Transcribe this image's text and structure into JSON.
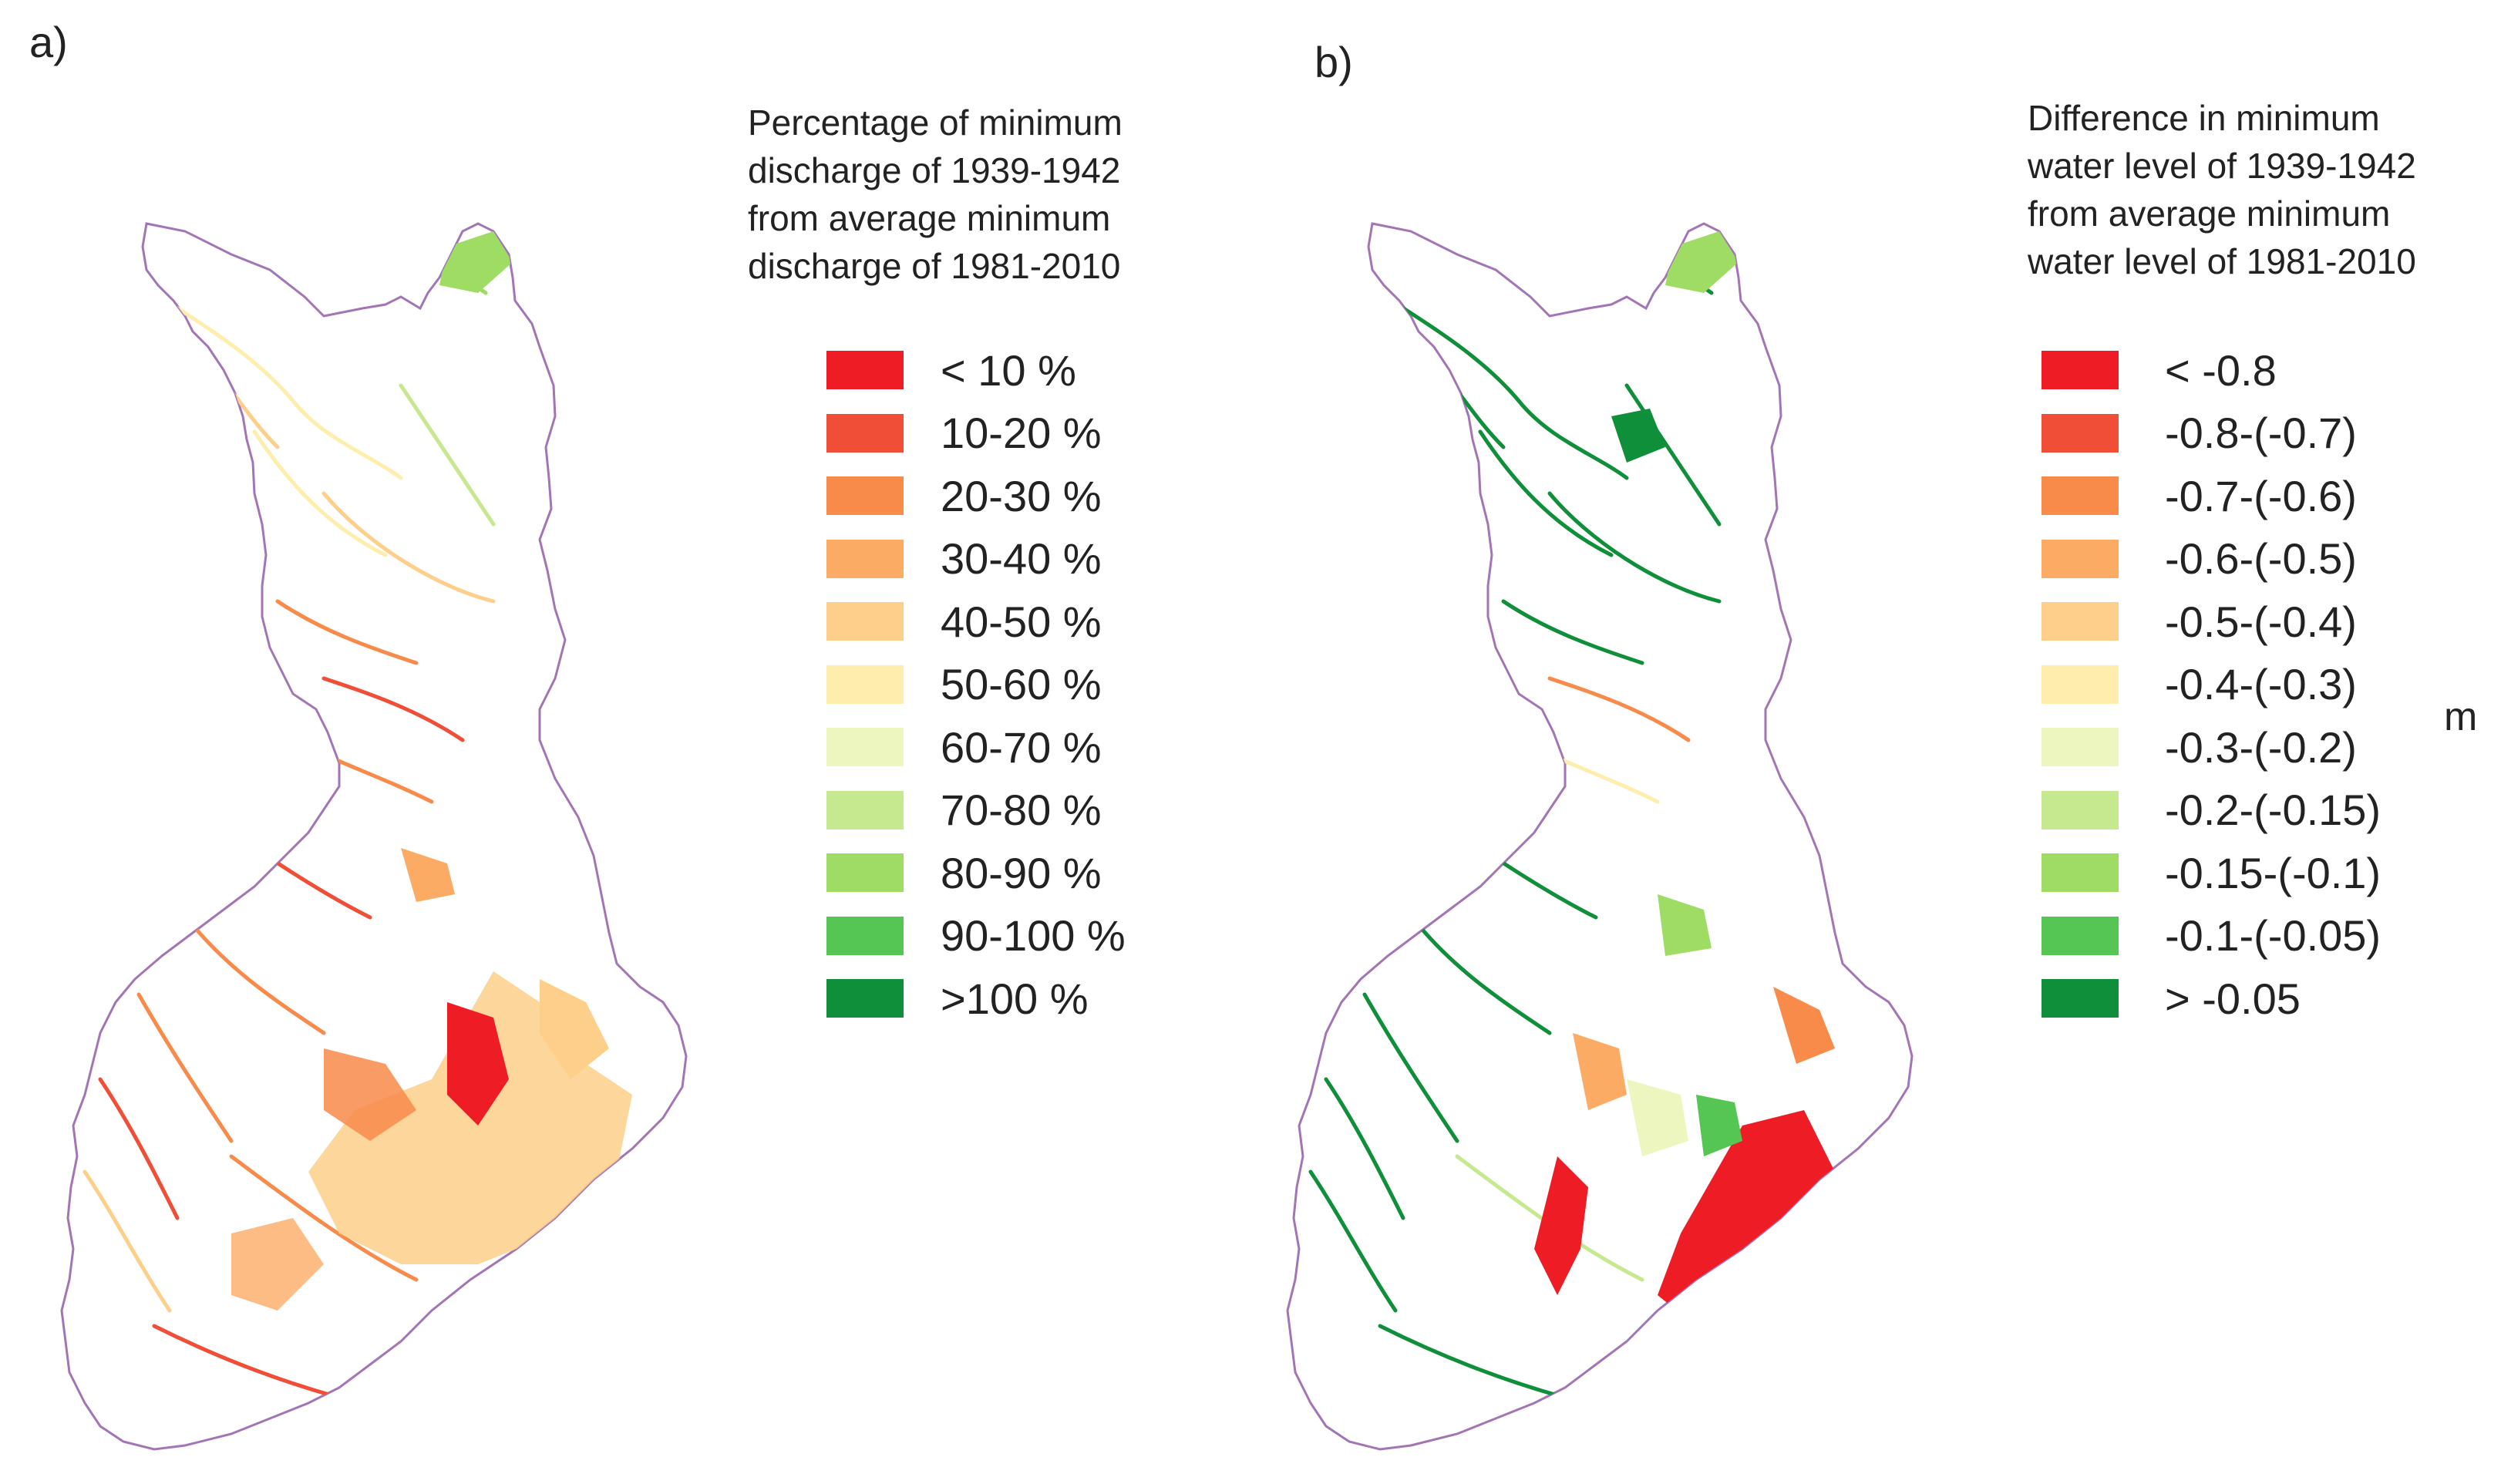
{
  "panels": [
    {
      "label": "a)",
      "legend_title": "Percentage of minimum\ndischarge of 1939-1942\nfrom average minimum\ndischarge of 1981-2010",
      "legend": [
        {
          "label": "< 10 %",
          "color": "#ee1c24"
        },
        {
          "label": "10-20 %",
          "color": "#f04e37"
        },
        {
          "label": "20-30 %",
          "color": "#f88a4a"
        },
        {
          "label": "30-40 %",
          "color": "#fbab64"
        },
        {
          "label": "40-50 %",
          "color": "#fdcf8a"
        },
        {
          "label": "50-60 %",
          "color": "#fdeeae"
        },
        {
          "label": "60-70 %",
          "color": "#eef6bf"
        },
        {
          "label": "70-80 %",
          "color": "#c6e98f"
        },
        {
          "label": "80-90 %",
          "color": "#9fdc64"
        },
        {
          "label": "90-100 %",
          "color": "#55c553"
        },
        {
          "label": ">100 %",
          "color": "#0f8f3a"
        }
      ]
    },
    {
      "label": "b)",
      "legend_title": "Difference in minimum\nwater level of 1939-1942\nfrom average minimum\nwater level of 1981-2010",
      "unit": "m",
      "legend": [
        {
          "label": "< -0.8",
          "color": "#ee1c24"
        },
        {
          "label": "-0.8-(-0.7)",
          "color": "#f04e37"
        },
        {
          "label": "-0.7-(-0.6)",
          "color": "#f88a4a"
        },
        {
          "label": "-0.6-(-0.5)",
          "color": "#fbab64"
        },
        {
          "label": "-0.5-(-0.4)",
          "color": "#fdcf8a"
        },
        {
          "label": "-0.4-(-0.3)",
          "color": "#fdeeae"
        },
        {
          "label": "-0.3-(-0.2)",
          "color": "#eef6bf"
        },
        {
          "label": "-0.2-(-0.15)",
          "color": "#c6e98f"
        },
        {
          "label": "-0.15-(-0.1)",
          "color": "#9fdc64"
        },
        {
          "label": "-0.1-(-0.05)",
          "color": "#55c553"
        },
        {
          "label": "> -0.05",
          "color": "#0f8f3a"
        }
      ]
    }
  ]
}
